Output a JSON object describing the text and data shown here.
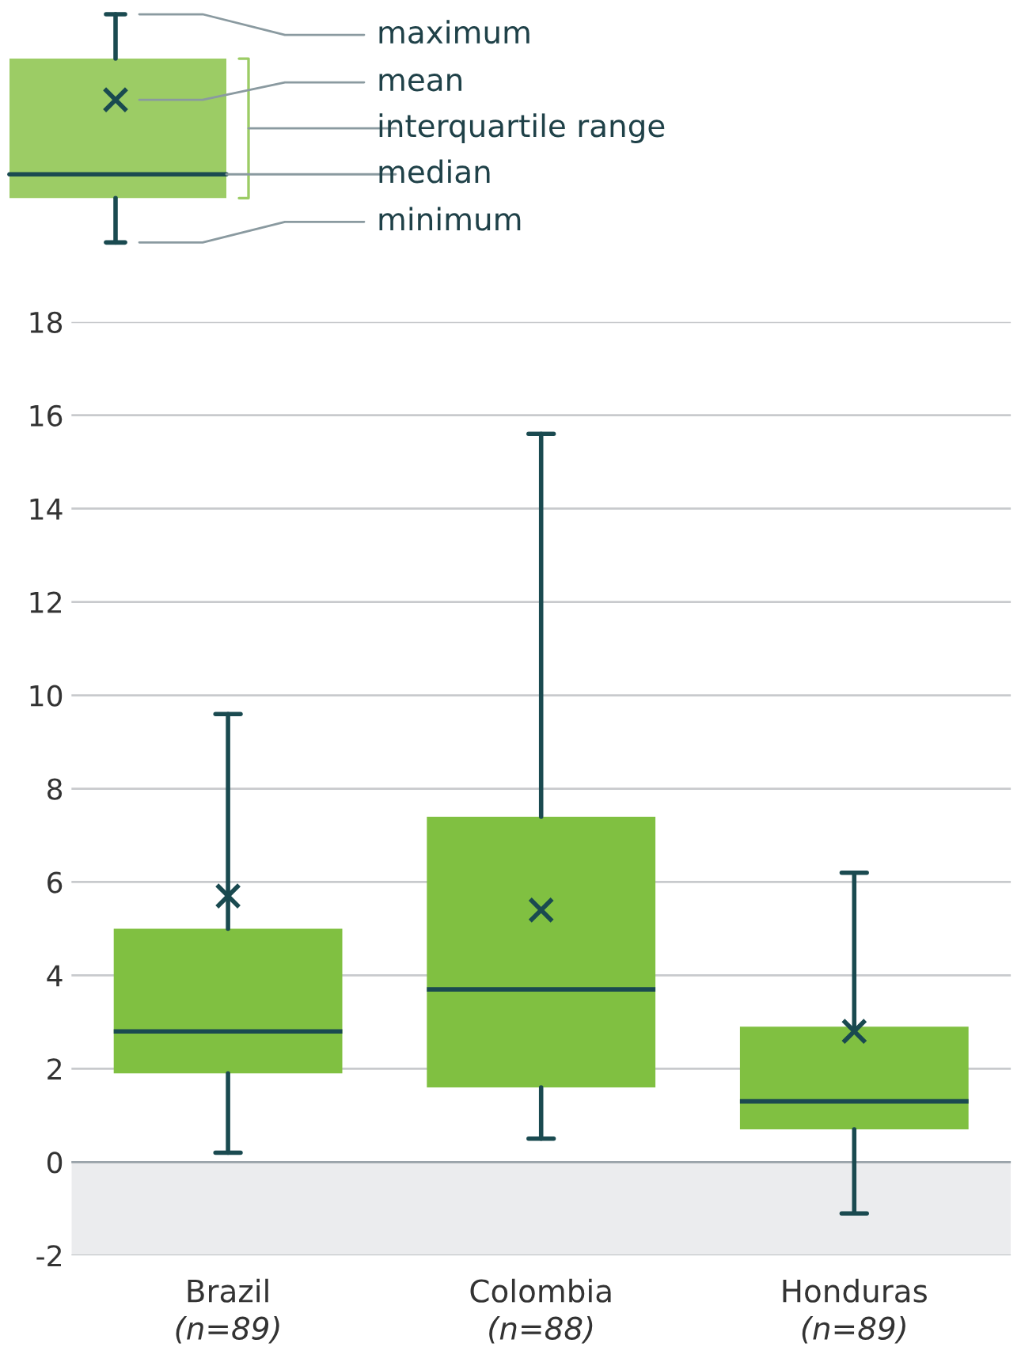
{
  "chart_data": {
    "type": "box",
    "categories": [
      "Brazil\n(n=89)",
      "Colombia\n(n=88)",
      "Honduras\n(n=89)"
    ],
    "boxes": [
      {
        "low": 0.2,
        "q1": 1.9,
        "median": 2.8,
        "q3": 5.0,
        "high": 9.6,
        "mean": 5.7
      },
      {
        "low": 0.5,
        "q1": 1.6,
        "median": 3.7,
        "q3": 7.4,
        "high": 15.6,
        "mean": 5.4
      },
      {
        "low": -1.1,
        "q1": 0.7,
        "median": 1.3,
        "q3": 2.9,
        "high": 6.2,
        "mean": 2.8
      }
    ],
    "color": "#80c041",
    "ylim": [
      -2,
      18
    ],
    "yticks": [
      -2,
      0,
      2,
      4,
      6,
      8,
      10,
      12,
      14,
      16,
      18
    ],
    "grid": "y",
    "bands": [
      {
        "axis": "y",
        "from": -2,
        "to": 0,
        "color": "#ebecee"
      }
    ],
    "annotations": [
      "maximum",
      "mean",
      "interquartile range",
      "median",
      "minimum"
    ]
  }
}
